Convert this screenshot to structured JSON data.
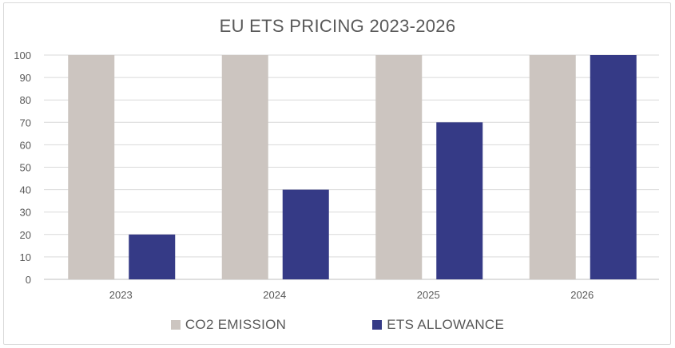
{
  "chart_data": {
    "type": "bar",
    "title": "EU ETS PRICING 2023-2026",
    "categories": [
      "2023",
      "2024",
      "2025",
      "2026"
    ],
    "series": [
      {
        "name": "CO2 EMISSION",
        "values": [
          100,
          100,
          100,
          100
        ],
        "color": "#ccc5c0"
      },
      {
        "name": "ETS ALLOWANCE",
        "values": [
          20,
          40,
          70,
          100
        ],
        "color": "#353a86"
      }
    ],
    "ylim": [
      0,
      100
    ],
    "yticks": [
      "0",
      "10",
      "20",
      "30",
      "40",
      "50",
      "60",
      "70",
      "80",
      "90",
      "100"
    ],
    "grid": true,
    "legend_position": "bottom",
    "xlabel": "",
    "ylabel": ""
  }
}
